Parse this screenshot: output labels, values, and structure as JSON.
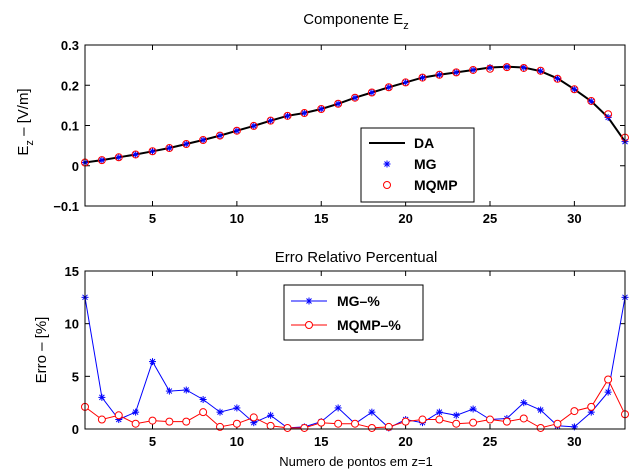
{
  "chart_data": [
    {
      "type": "line",
      "title": "Componente E",
      "title_subscript": "z",
      "ylabel": "E",
      "ylabel_subscript": "z",
      "ylabel_rest": " – [V/m]",
      "xlabel": "",
      "xlim": [
        1,
        33
      ],
      "ylim": [
        -0.1,
        0.3
      ],
      "xticks": [
        "5",
        "10",
        "15",
        "20",
        "25",
        "30"
      ],
      "xtick_values": [
        5,
        10,
        15,
        20,
        25,
        30
      ],
      "yticks": [
        "−0.1",
        "0",
        "0.1",
        "0.2",
        "0.3"
      ],
      "ytick_values": [
        -0.1,
        0,
        0.1,
        0.2,
        0.3
      ],
      "grid": false,
      "legend_position": "center-right",
      "series": [
        {
          "name": "DA",
          "style": "line",
          "color": "#000000",
          "x": [
            1,
            2,
            3,
            4,
            5,
            6,
            7,
            8,
            9,
            10,
            11,
            12,
            13,
            14,
            15,
            16,
            17,
            18,
            19,
            20,
            21,
            22,
            23,
            24,
            25,
            26,
            27,
            28,
            29,
            30,
            31,
            32,
            33
          ],
          "values": [
            0.008,
            0.014,
            0.021,
            0.028,
            0.036,
            0.044,
            0.054,
            0.064,
            0.075,
            0.087,
            0.099,
            0.112,
            0.124,
            0.131,
            0.141,
            0.154,
            0.169,
            0.182,
            0.195,
            0.207,
            0.219,
            0.226,
            0.232,
            0.238,
            0.244,
            0.246,
            0.244,
            0.235,
            0.217,
            0.19,
            0.16,
            0.12,
            0.06
          ]
        },
        {
          "name": "MG",
          "style": "star",
          "color": "#0000ff",
          "x": [
            1,
            2,
            3,
            4,
            5,
            6,
            7,
            8,
            9,
            10,
            11,
            12,
            13,
            14,
            15,
            16,
            17,
            18,
            19,
            20,
            21,
            22,
            23,
            24,
            25,
            26,
            27,
            28,
            29,
            30,
            31,
            32,
            33
          ],
          "values": [
            0.008,
            0.014,
            0.021,
            0.028,
            0.036,
            0.044,
            0.054,
            0.064,
            0.075,
            0.087,
            0.099,
            0.112,
            0.124,
            0.131,
            0.141,
            0.154,
            0.169,
            0.182,
            0.195,
            0.207,
            0.219,
            0.226,
            0.232,
            0.238,
            0.244,
            0.246,
            0.244,
            0.235,
            0.217,
            0.19,
            0.16,
            0.12,
            0.06
          ]
        },
        {
          "name": "MQMP",
          "style": "circle",
          "color": "#ff0000",
          "x": [
            1,
            2,
            3,
            4,
            5,
            6,
            7,
            8,
            9,
            10,
            11,
            12,
            13,
            14,
            15,
            16,
            17,
            18,
            19,
            20,
            21,
            22,
            23,
            24,
            25,
            26,
            27,
            28,
            29,
            30,
            31,
            32,
            33
          ],
          "values": [
            0.008,
            0.014,
            0.021,
            0.028,
            0.036,
            0.044,
            0.054,
            0.064,
            0.075,
            0.087,
            0.099,
            0.112,
            0.124,
            0.131,
            0.141,
            0.154,
            0.169,
            0.182,
            0.195,
            0.207,
            0.219,
            0.226,
            0.232,
            0.238,
            0.241,
            0.245,
            0.243,
            0.236,
            0.216,
            0.19,
            0.161,
            0.128,
            0.07
          ]
        }
      ]
    },
    {
      "type": "line",
      "title": "Erro Relativo Percentual",
      "ylabel": "Erro – [%]",
      "xlabel": "Numero de pontos em z=1",
      "xlim": [
        1,
        33
      ],
      "ylim": [
        0,
        15
      ],
      "xticks": [
        "5",
        "10",
        "15",
        "20",
        "25",
        "30"
      ],
      "xtick_values": [
        5,
        10,
        15,
        20,
        25,
        30
      ],
      "yticks": [
        "0",
        "5",
        "10",
        "15"
      ],
      "ytick_values": [
        0,
        5,
        10,
        15
      ],
      "grid": false,
      "legend_position": "top-center",
      "series": [
        {
          "name": "MG–%",
          "style": "line-star",
          "color": "#0000ff",
          "x": [
            1,
            2,
            3,
            4,
            5,
            6,
            7,
            8,
            9,
            10,
            11,
            12,
            13,
            14,
            15,
            16,
            17,
            18,
            19,
            20,
            21,
            22,
            23,
            24,
            25,
            26,
            27,
            28,
            29,
            30,
            31,
            32,
            33
          ],
          "values": [
            12.5,
            3.0,
            0.9,
            1.6,
            6.4,
            3.6,
            3.7,
            2.8,
            1.6,
            2.0,
            0.6,
            1.3,
            0.1,
            0.2,
            0.7,
            2.0,
            0.5,
            1.6,
            0.1,
            0.9,
            0.6,
            1.6,
            1.3,
            1.9,
            0.9,
            1.0,
            2.5,
            1.8,
            0.3,
            0.2,
            1.6,
            3.5,
            12.5
          ]
        },
        {
          "name": "MQMP–%",
          "style": "line-circle",
          "color": "#ff0000",
          "x": [
            1,
            2,
            3,
            4,
            5,
            6,
            7,
            8,
            9,
            10,
            11,
            12,
            13,
            14,
            15,
            16,
            17,
            18,
            19,
            20,
            21,
            22,
            23,
            24,
            25,
            26,
            27,
            28,
            29,
            30,
            31,
            32,
            33
          ],
          "values": [
            2.1,
            0.9,
            1.3,
            0.5,
            0.8,
            0.7,
            0.7,
            1.6,
            0.2,
            0.5,
            1.1,
            0.3,
            0.1,
            0.1,
            0.6,
            0.5,
            0.5,
            0.1,
            0.2,
            0.7,
            0.9,
            0.9,
            0.5,
            0.6,
            0.9,
            0.7,
            1.0,
            0.1,
            0.5,
            1.7,
            2.1,
            4.7,
            1.4
          ]
        }
      ]
    }
  ]
}
